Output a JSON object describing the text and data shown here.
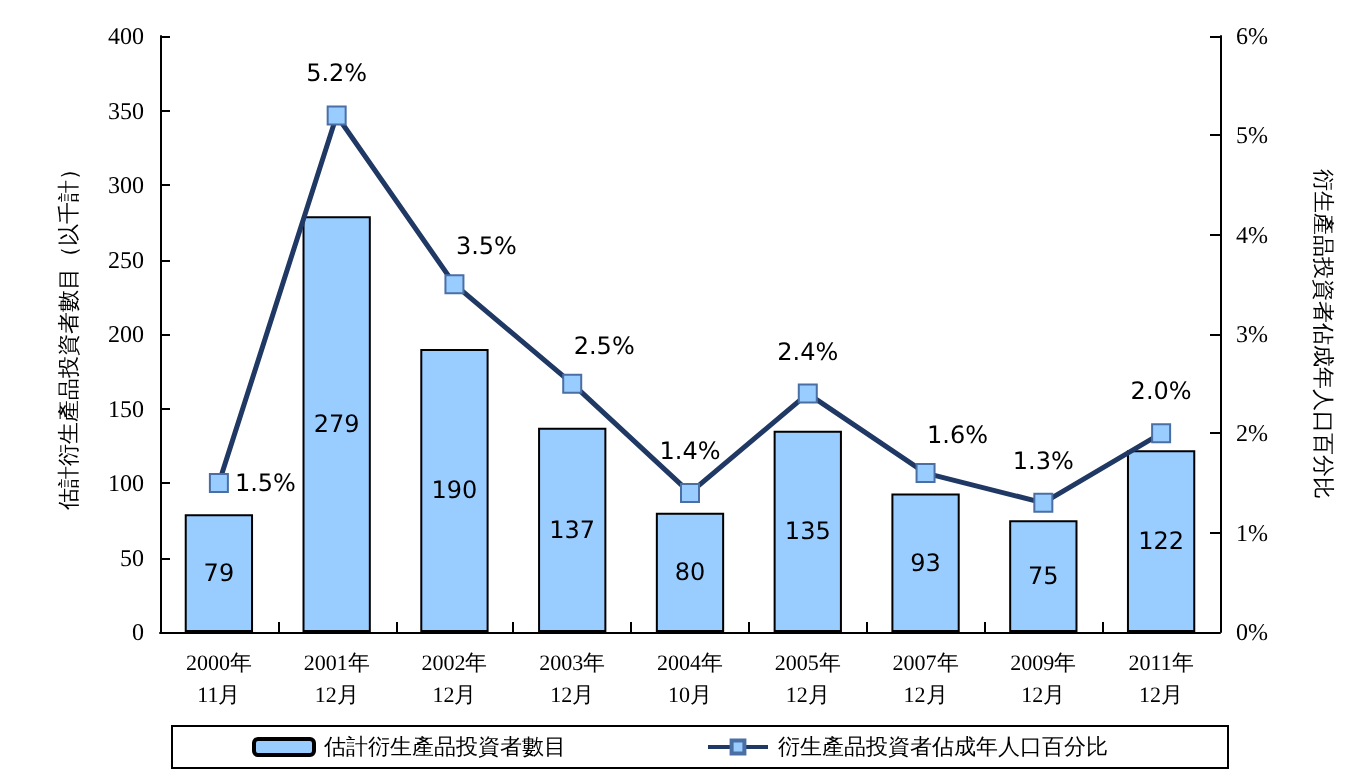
{
  "chart_data": {
    "type": "bar",
    "categories": [
      "2000年\n11月",
      "2001年\n12月",
      "2002年\n12月",
      "2003年\n12月",
      "2004年\n10月",
      "2005年\n12月",
      "2007年\n12月",
      "2009年\n12月",
      "2011年\n12月"
    ],
    "series": [
      {
        "name": "估計衍生產品投資者數目",
        "color": "#99ccff",
        "values": [
          79,
          279,
          190,
          137,
          80,
          135,
          93,
          75,
          122
        ],
        "value_labels": [
          "79",
          "279",
          "190",
          "137",
          "80",
          "135",
          "93",
          "75",
          "122"
        ]
      },
      {
        "name": "衍生產品投資者佔成年人口百分比",
        "type": "line",
        "axis": "y2",
        "color": "#1f3864",
        "marker": "square",
        "values": [
          1.5,
          5.2,
          3.5,
          2.5,
          1.4,
          2.4,
          1.6,
          1.3,
          2.0
        ],
        "value_labels": [
          "1.5%",
          "5.2%",
          "3.5%",
          "2.5%",
          "1.4%",
          "2.4%",
          "1.6%",
          "1.3%",
          "2.0%"
        ]
      }
    ],
    "ylabel": "估計衍生產品投資者數目（以千計）",
    "y2label": "衍生產品投資者佔成年人口百分比",
    "ylim": [
      0,
      400
    ],
    "yticks": [
      0,
      50,
      100,
      150,
      200,
      250,
      300,
      350,
      400
    ],
    "y2lim": [
      0,
      6
    ],
    "y2ticks": [
      {
        "value": 0,
        "label": "0%"
      },
      {
        "value": 1,
        "label": "1%"
      },
      {
        "value": 2,
        "label": "2%"
      },
      {
        "value": 3,
        "label": "3%"
      },
      {
        "value": 4,
        "label": "4%"
      },
      {
        "value": 5,
        "label": "5%"
      },
      {
        "value": 6,
        "label": "6%"
      }
    ],
    "grid": false,
    "legend": "bottom"
  }
}
